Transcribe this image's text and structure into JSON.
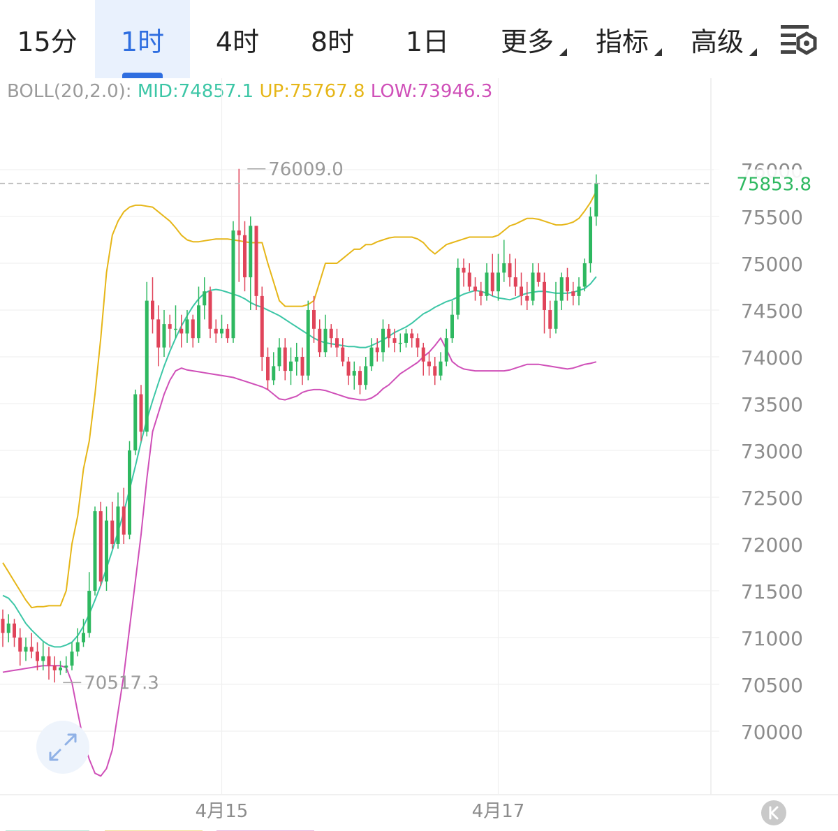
{
  "tabs": [
    {
      "label": "15分",
      "active": false,
      "has_menu": false
    },
    {
      "label": "1时",
      "active": true,
      "has_menu": false
    },
    {
      "label": "4时",
      "active": false,
      "has_menu": false
    },
    {
      "label": "8时",
      "active": false,
      "has_menu": false
    },
    {
      "label": "1日",
      "active": false,
      "has_menu": false
    },
    {
      "label": "更多",
      "active": false,
      "has_menu": true
    },
    {
      "label": "指标",
      "active": false,
      "has_menu": true
    },
    {
      "label": "高级",
      "active": false,
      "has_menu": true
    }
  ],
  "settings_icon": "chart-settings-icon",
  "indicator": {
    "name": "BOLL(20,2.0):",
    "mid": "MID:74857.1",
    "up": "UP:75767.8",
    "low": "LOW:73946.3"
  },
  "colors": {
    "up_candle": "#2eb860",
    "down_candle": "#e0445a",
    "mid": "#3cc6a6",
    "upper": "#e6b618",
    "lower": "#cf4fb8",
    "accent": "#2f6ee0",
    "last_price": "#2eb860"
  },
  "price_tag": "75853.8",
  "high_marker": "76009.0",
  "low_marker": "70517.3",
  "expand_icon": "expand-arrows-icon",
  "collapse_icon": "k-line-toggle-icon",
  "chart_data": {
    "type": "candlestick",
    "y_ticks": [
      "76000",
      "75500",
      "75000",
      "74500",
      "74000",
      "73500",
      "73000",
      "72500",
      "72000",
      "71500",
      "71000",
      "70500",
      "70000"
    ],
    "x_ticks": [
      {
        "label": "4月15",
        "index": 38
      },
      {
        "label": "4月17",
        "index": 86
      }
    ],
    "ylim": [
      69650,
      76400
    ],
    "grid": true,
    "last_price": 75853.8,
    "series": [
      {
        "name": "MID",
        "values": [
          71450,
          71420,
          71350,
          71250,
          71150,
          71080,
          71020,
          70960,
          70920,
          70900,
          70900,
          70920,
          70950,
          71020,
          71120,
          71250,
          71400,
          71560,
          71740,
          71930,
          72130,
          72340,
          72580,
          72830,
          73090,
          73330,
          73530,
          73720,
          73900,
          74060,
          74200,
          74330,
          74440,
          74540,
          74620,
          74680,
          74710,
          74720,
          74710,
          74690,
          74670,
          74650,
          74620,
          74580,
          74550,
          74530,
          74500,
          74470,
          74440,
          74400,
          74360,
          74320,
          74280,
          74240,
          74200,
          74170,
          74150,
          74140,
          74130,
          74120,
          74110,
          74110,
          74100,
          74100,
          74120,
          74150,
          74180,
          74220,
          74260,
          74290,
          74320,
          74360,
          74410,
          74460,
          74490,
          74530,
          74560,
          74590,
          74610,
          74640,
          74670,
          74690,
          74710,
          74700,
          74680,
          74650,
          74630,
          74620,
          74610,
          74630,
          74660,
          74680,
          74690,
          74700,
          74700,
          74690,
          74680,
          74680,
          74680,
          74690,
          74710,
          74730,
          74780,
          74857
        ]
      },
      {
        "name": "UP",
        "values": [
          71800,
          71700,
          71600,
          71500,
          71400,
          71320,
          71330,
          71330,
          71340,
          71340,
          71340,
          71500,
          72000,
          72300,
          72800,
          73100,
          73600,
          74200,
          74900,
          75300,
          75450,
          75550,
          75600,
          75620,
          75620,
          75610,
          75600,
          75550,
          75500,
          75450,
          75380,
          75300,
          75250,
          75230,
          75230,
          75240,
          75250,
          75260,
          75260,
          75260,
          75250,
          75240,
          75230,
          75220,
          75220,
          75220,
          75000,
          74800,
          74600,
          74540,
          74540,
          74540,
          74540,
          74560,
          74600,
          74800,
          75000,
          75000,
          75000,
          75050,
          75100,
          75150,
          75150,
          75200,
          75200,
          75230,
          75250,
          75270,
          75280,
          75280,
          75280,
          75280,
          75260,
          75220,
          75150,
          75100,
          75150,
          75200,
          75220,
          75240,
          75260,
          75280,
          75280,
          75280,
          75280,
          75280,
          75300,
          75350,
          75400,
          75420,
          75450,
          75480,
          75480,
          75470,
          75450,
          75430,
          75410,
          75410,
          75420,
          75440,
          75480,
          75560,
          75650,
          75768
        ]
      },
      {
        "name": "LOW",
        "values": [
          70630,
          70640,
          70650,
          70660,
          70670,
          70680,
          70690,
          70700,
          70700,
          70700,
          70700,
          70680,
          70520,
          70200,
          69900,
          69700,
          69550,
          69520,
          69600,
          69800,
          70200,
          70600,
          71100,
          71600,
          72100,
          72700,
          73200,
          73400,
          73600,
          73750,
          73850,
          73880,
          73860,
          73850,
          73840,
          73830,
          73820,
          73810,
          73800,
          73790,
          73780,
          73760,
          73740,
          73720,
          73700,
          73680,
          73650,
          73600,
          73550,
          73540,
          73560,
          73580,
          73620,
          73640,
          73650,
          73650,
          73640,
          73620,
          73600,
          73580,
          73560,
          73550,
          73540,
          73540,
          73560,
          73600,
          73660,
          73700,
          73760,
          73820,
          73860,
          73900,
          73940,
          74000,
          74050,
          74120,
          74200,
          74080,
          73950,
          73900,
          73870,
          73860,
          73850,
          73850,
          73850,
          73850,
          73850,
          73850,
          73860,
          73880,
          73900,
          73920,
          73920,
          73920,
          73910,
          73900,
          73890,
          73880,
          73870,
          73880,
          73900,
          73920,
          73930,
          73946
        ]
      }
    ],
    "candles": [
      [
        71200,
        71050,
        71300,
        70900
      ],
      [
        71050,
        71150,
        71250,
        70950
      ],
      [
        71150,
        71000,
        71200,
        70900
      ],
      [
        71000,
        70850,
        71100,
        70700
      ],
      [
        70850,
        70900,
        71000,
        70750
      ],
      [
        70900,
        70850,
        71050,
        70780
      ],
      [
        70850,
        70750,
        70950,
        70650
      ],
      [
        70750,
        70800,
        70950,
        70650
      ],
      [
        70800,
        70700,
        70900,
        70550
      ],
      [
        70700,
        70650,
        70800,
        70520
      ],
      [
        70650,
        70680,
        70750,
        70600
      ],
      [
        70680,
        70700,
        70800,
        70620
      ],
      [
        70700,
        70850,
        70950,
        70650
      ],
      [
        70850,
        70950,
        71100,
        70800
      ],
      [
        70950,
        71050,
        71200,
        70900
      ],
      [
        71050,
        71500,
        71700,
        71000
      ],
      [
        71500,
        72350,
        72400,
        71450
      ],
      [
        72350,
        71600,
        72450,
        71550
      ],
      [
        71600,
        72250,
        72400,
        71500
      ],
      [
        72250,
        72000,
        72450,
        71950
      ],
      [
        72000,
        72400,
        72550,
        71950
      ],
      [
        72400,
        72100,
        72600,
        72000
      ],
      [
        72100,
        73000,
        73100,
        72050
      ],
      [
        73000,
        73600,
        73650,
        72950
      ],
      [
        73600,
        73200,
        73700,
        73100
      ],
      [
        73200,
        74600,
        74800,
        73150
      ],
      [
        74600,
        74400,
        74850,
        74250
      ],
      [
        74400,
        74100,
        74550,
        73900
      ],
      [
        74100,
        74350,
        74500,
        74000
      ],
      [
        74350,
        74300,
        74450,
        74100
      ],
      [
        74300,
        74300,
        74550,
        74200
      ],
      [
        74300,
        74250,
        74450,
        74100
      ],
      [
        74250,
        74400,
        74500,
        74150
      ],
      [
        74400,
        74200,
        74450,
        74100
      ],
      [
        74200,
        74550,
        74750,
        74150
      ],
      [
        74550,
        74700,
        74850,
        74400
      ],
      [
        74700,
        74300,
        74750,
        74200
      ],
      [
        74300,
        74250,
        74400,
        74150
      ],
      [
        74250,
        74300,
        74450,
        74200
      ],
      [
        74300,
        74200,
        74350,
        74150
      ],
      [
        74200,
        75350,
        75450,
        74150
      ],
      [
        75350,
        75300,
        76009,
        74800
      ],
      [
        75300,
        74850,
        75450,
        74700
      ],
      [
        74850,
        75400,
        75500,
        74500
      ],
      [
        75400,
        74650,
        75350,
        74500
      ],
      [
        74650,
        74000,
        74750,
        73850
      ],
      [
        74000,
        73750,
        74100,
        73650
      ],
      [
        73750,
        73900,
        74050,
        73700
      ],
      [
        73900,
        74100,
        74200,
        73850
      ],
      [
        74100,
        73850,
        74200,
        73750
      ],
      [
        73850,
        73950,
        74100,
        73700
      ],
      [
        73950,
        74000,
        74150,
        73800
      ],
      [
        74000,
        73800,
        74100,
        73700
      ],
      [
        73800,
        74500,
        74600,
        73750
      ],
      [
        74500,
        74300,
        74650,
        74150
      ],
      [
        74300,
        74050,
        74400,
        74000
      ],
      [
        74050,
        74300,
        74450,
        74000
      ],
      [
        74300,
        74200,
        74350,
        74100
      ],
      [
        74200,
        74100,
        74300,
        74000
      ],
      [
        74100,
        73950,
        74200,
        73900
      ],
      [
        73950,
        73800,
        74000,
        73700
      ],
      [
        73800,
        73850,
        73950,
        73650
      ],
      [
        73850,
        73700,
        73900,
        73600
      ],
      [
        73700,
        73900,
        74000,
        73650
      ],
      [
        73900,
        74100,
        74200,
        73850
      ],
      [
        74100,
        74050,
        74200,
        73950
      ],
      [
        74050,
        74300,
        74400,
        73950
      ],
      [
        74300,
        74200,
        74350,
        74100
      ],
      [
        74200,
        74150,
        74300,
        74050
      ],
      [
        74150,
        74150,
        74250,
        74050
      ],
      [
        74150,
        74250,
        74300,
        74100
      ],
      [
        74250,
        74200,
        74300,
        74100
      ],
      [
        74200,
        74100,
        74250,
        74000
      ],
      [
        74100,
        73950,
        74150,
        73800
      ],
      [
        73950,
        73900,
        74050,
        73800
      ],
      [
        73900,
        73800,
        74000,
        73700
      ],
      [
        73800,
        73950,
        74050,
        73750
      ],
      [
        73950,
        74200,
        74300,
        73900
      ],
      [
        74200,
        74450,
        74600,
        74150
      ],
      [
        74450,
        74950,
        75050,
        74400
      ],
      [
        74950,
        74900,
        75050,
        74750
      ],
      [
        74900,
        74750,
        75000,
        74700
      ],
      [
        74750,
        74700,
        74850,
        74600
      ],
      [
        74700,
        74650,
        74800,
        74550
      ],
      [
        74650,
        74900,
        75000,
        74600
      ],
      [
        74900,
        74700,
        75100,
        74650
      ],
      [
        74700,
        74900,
        75100,
        74600
      ],
      [
        74900,
        75000,
        75250,
        74800
      ],
      [
        75000,
        74850,
        75100,
        74750
      ],
      [
        74850,
        74750,
        75050,
        74650
      ],
      [
        74750,
        74650,
        74900,
        74550
      ],
      [
        74650,
        74600,
        74800,
        74500
      ],
      [
        74600,
        74900,
        75000,
        74550
      ],
      [
        74900,
        74800,
        75000,
        74750
      ],
      [
        74800,
        74500,
        74900,
        74250
      ],
      [
        74500,
        74300,
        74600,
        74200
      ],
      [
        74300,
        74600,
        74800,
        74250
      ],
      [
        74600,
        74850,
        74900,
        74500
      ],
      [
        74850,
        74700,
        74950,
        74600
      ],
      [
        74700,
        74650,
        74800,
        74550
      ],
      [
        74650,
        74750,
        74850,
        74550
      ],
      [
        74750,
        75000,
        75050,
        74700
      ],
      [
        75000,
        75500,
        75600,
        74900
      ],
      [
        75500,
        75854,
        75950,
        75400
      ]
    ]
  }
}
